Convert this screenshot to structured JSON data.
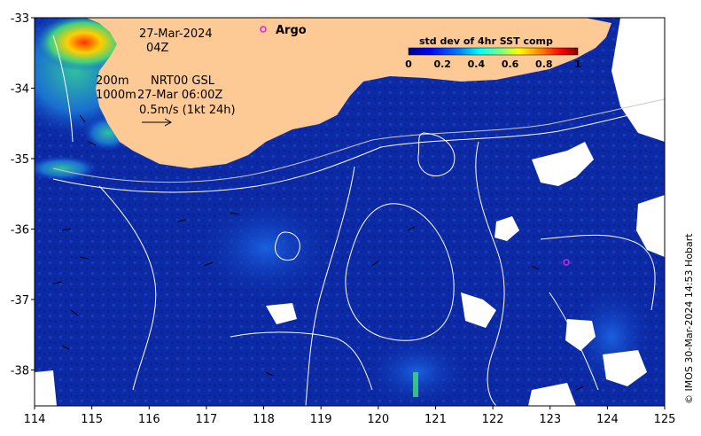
{
  "map": {
    "date": "27-Mar-2024",
    "hour": "04Z",
    "contour_label_1": "200m",
    "contour_label_2": "1000m",
    "product": "NRT00 GSL",
    "product_time": "27-Mar 06:00Z",
    "vector_scale": "0.5m/s (1kt 24h)",
    "argo_label": "Argo",
    "credit": "© IMOS 30-Mar-2024 14:53 Hobart",
    "legend": {
      "title": "std dev of 4hr SST comp",
      "ticks": [
        "0",
        "0.2",
        "0.4",
        "0.6",
        "0.8",
        "1"
      ],
      "colors": [
        "#00008f",
        "#0000ff",
        "#0080ff",
        "#00ffff",
        "#80ff80",
        "#ffff00",
        "#ff8000",
        "#ff0000",
        "#800000"
      ]
    },
    "x_axis": {
      "ticks": [
        "114",
        "115",
        "116",
        "117",
        "118",
        "119",
        "120",
        "121",
        "122",
        "123",
        "124",
        "125"
      ]
    },
    "y_axis": {
      "ticks": [
        "-33",
        "-34",
        "-35",
        "-36",
        "-37",
        "-38"
      ]
    },
    "colors": {
      "land": "#fdca95",
      "ocean": "#0c2aa6",
      "argo": "#e020e0"
    }
  }
}
